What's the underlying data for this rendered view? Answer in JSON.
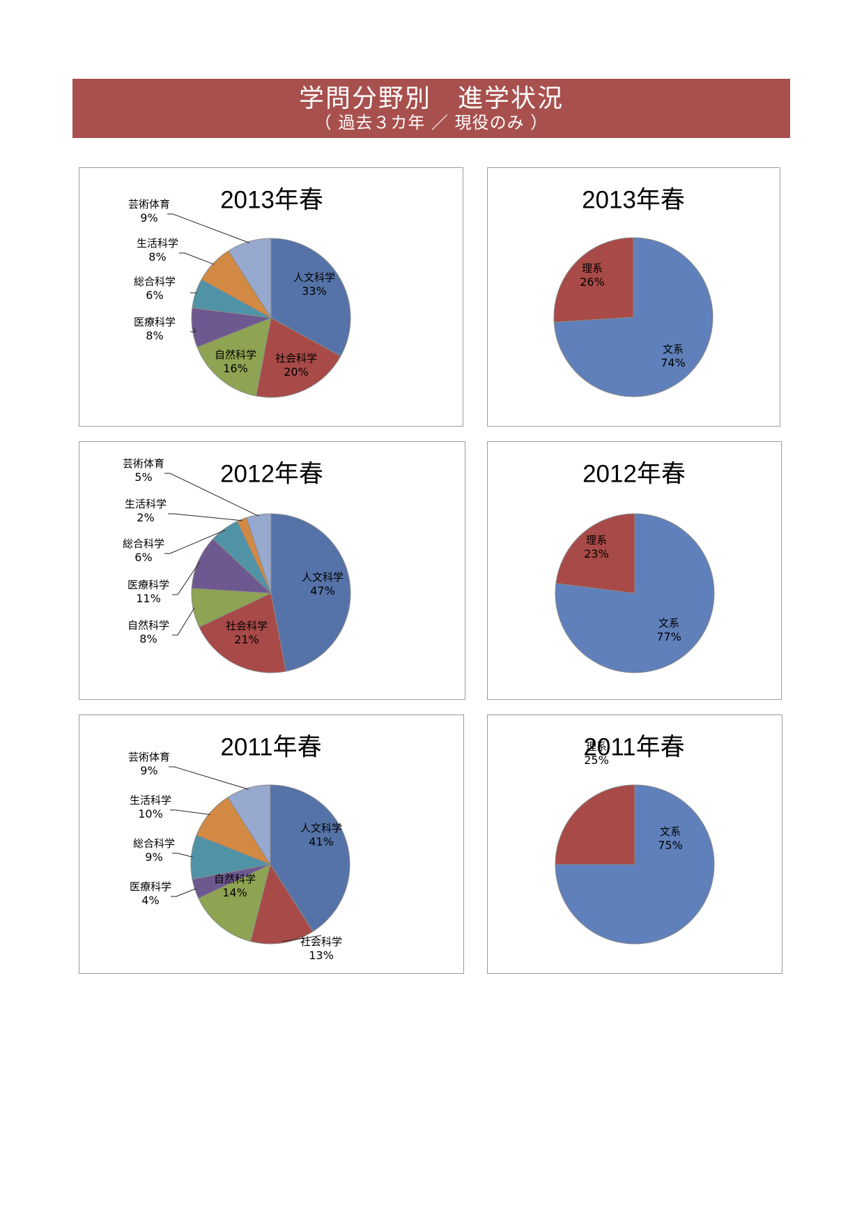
{
  "header": {
    "title": "学問分野別　進学状況",
    "subtitle": "（ 過去３カ年 ／ 現役のみ ）"
  },
  "colors": {
    "banner": "#a8504e",
    "人文科学": "#5573a8",
    "社会科学": "#a84a48",
    "自然科学": "#8ea452",
    "医療科学": "#6e5890",
    "総合科学": "#5093a6",
    "生活科学": "#d28943",
    "芸術体育": "#98a9cf",
    "文系": "#5f80ba",
    "理系": "#a84a48"
  },
  "chart_data": [
    {
      "type": "pie",
      "title": "2013年春",
      "categories": [
        "人文科学",
        "社会科学",
        "自然科学",
        "医療科学",
        "総合科学",
        "生活科学",
        "芸術体育"
      ],
      "values": [
        33,
        20,
        16,
        8,
        6,
        8,
        9
      ],
      "value_labels": [
        "33%",
        "20%",
        "16%",
        "8%",
        "6%",
        "8%",
        "9%"
      ]
    },
    {
      "type": "pie",
      "title": "2013年春",
      "categories": [
        "文系",
        "理系"
      ],
      "values": [
        74,
        26
      ],
      "value_labels": [
        "74%",
        "26%"
      ]
    },
    {
      "type": "pie",
      "title": "2012年春",
      "categories": [
        "人文科学",
        "社会科学",
        "自然科学",
        "医療科学",
        "総合科学",
        "生活科学",
        "芸術体育"
      ],
      "values": [
        47,
        21,
        8,
        11,
        6,
        2,
        5
      ],
      "value_labels": [
        "47%",
        "21%",
        "8%",
        "11%",
        "6%",
        "2%",
        "5%"
      ]
    },
    {
      "type": "pie",
      "title": "2012年春",
      "categories": [
        "文系",
        "理系"
      ],
      "values": [
        77,
        23
      ],
      "value_labels": [
        "77%",
        "23%"
      ]
    },
    {
      "type": "pie",
      "title": "2011年春",
      "categories": [
        "人文科学",
        "社会科学",
        "自然科学",
        "医療科学",
        "総合科学",
        "生活科学",
        "芸術体育"
      ],
      "values": [
        41,
        13,
        14,
        4,
        9,
        10,
        9
      ],
      "value_labels": [
        "41%",
        "13%",
        "14%",
        "4%",
        "9%",
        "10%",
        "9%"
      ]
    },
    {
      "type": "pie",
      "title": "2011年春",
      "categories": [
        "文系",
        "理系"
      ],
      "values": [
        75,
        25
      ],
      "value_labels": [
        "75%",
        "25%"
      ]
    }
  ]
}
